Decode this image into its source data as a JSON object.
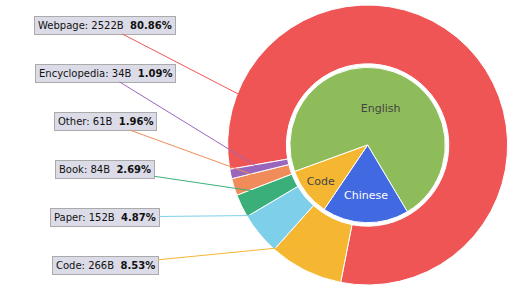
{
  "chart_data": [
    {
      "type": "donut",
      "categories": [
        "Webpage: 2522B",
        "Code: 266B",
        "Paper: 152B",
        "Book: 84B",
        "Other: 61B",
        "Encyclopedia: 34B"
      ],
      "values": [
        80.86,
        8.53,
        4.87,
        2.69,
        1.96,
        1.09
      ],
      "value_labels": [
        "80.86%",
        "8.53%",
        "4.87%",
        "2.69%",
        "1.96%",
        "1.09%"
      ],
      "colors": [
        "#f05555",
        "#f5b731",
        "#7ecfea",
        "#3aaf7a",
        "#f08c5a",
        "#9966bb"
      ],
      "data_labels": true
    },
    {
      "type": "pie",
      "categories": [
        "English",
        "Chinese",
        "Code"
      ],
      "values": [
        72.0,
        18.0,
        10.0
      ],
      "colors": [
        "#8fbc5a",
        "#4169e1",
        "#f5b731"
      ]
    }
  ]
}
